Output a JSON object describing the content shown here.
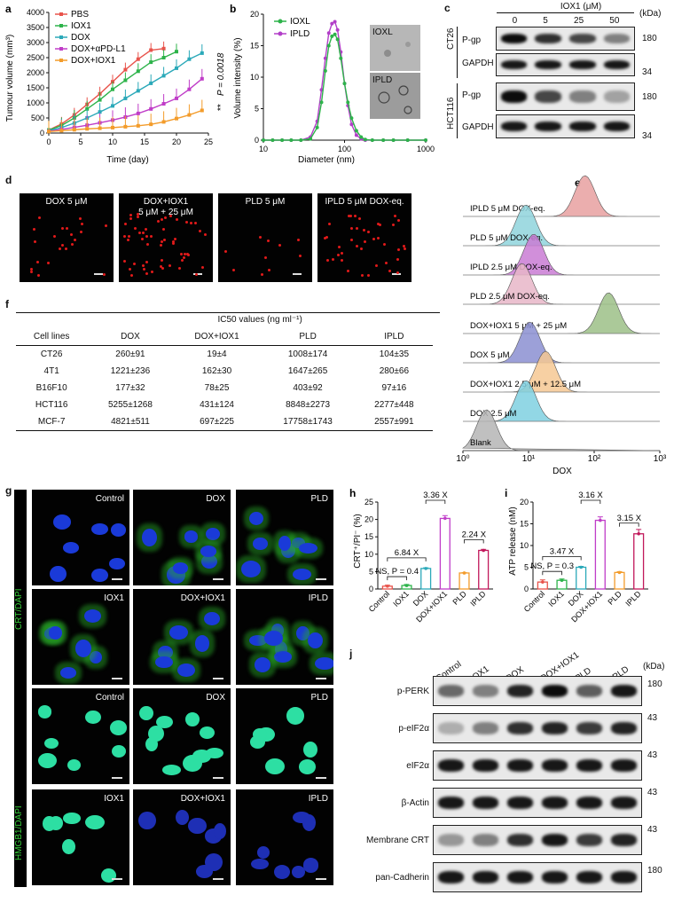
{
  "panels": {
    "a": {
      "label": "a",
      "ylabel": "Tumour volume (mm³)",
      "xlabel": "Time (day)",
      "pvalue_text": "P = 0.0018",
      "stars": "**",
      "legend": [
        "PBS",
        "IOX1",
        "DOX",
        "DOX+αPD-L1",
        "DOX+IOX1"
      ]
    },
    "b": {
      "label": "b",
      "ylabel": "Volume intensity (%)",
      "xlabel": "Diameter (nm)",
      "legend": [
        "IOXL",
        "IPLD"
      ],
      "tem_labels": [
        "IOXL",
        "IPLD"
      ]
    },
    "c": {
      "label": "c",
      "header": "IOX1 (μM)",
      "doses": [
        "0",
        "5",
        "25",
        "50"
      ],
      "unit": "(kDa)",
      "groups": [
        {
          "name": "CT26",
          "rows": [
            {
              "label": "P-gp",
              "kda": "180"
            },
            {
              "label": "GAPDH",
              "kda": "34"
            }
          ]
        },
        {
          "name": "HCT116",
          "rows": [
            {
              "label": "P-gp",
              "kda": "180"
            },
            {
              "label": "GAPDH",
              "kda": "34"
            }
          ]
        }
      ]
    },
    "d": {
      "label": "d",
      "titles": [
        "DOX 5 μM",
        "DOX+IOX1\n5 μM + 25 μM",
        "PLD 5 μM",
        "IPLD 5 μM DOX-eq."
      ]
    },
    "e": {
      "label": "e",
      "xlabel": "DOX",
      "rows": [
        "IPLD 5 μM DOX-eq.",
        "PLD 5 μM DOX-eq.",
        "IPLD 2.5 μM DOX-eq.",
        "PLD 2.5 μM DOX-eq.",
        "DOX+IOX1 5 μM + 25 μM",
        "DOX 5 μM",
        "DOX+IOX1 2.5 μM + 12.5 μM",
        "DOX 2.5 μM",
        "Blank"
      ],
      "xticks": [
        "10⁰",
        "10¹",
        "10²",
        "10³"
      ]
    },
    "f": {
      "label": "f",
      "ic50_title": "IC50 values (ng ml⁻¹)",
      "columns": [
        "Cell lines",
        "DOX",
        "DOX+IOX1",
        "PLD",
        "IPLD"
      ],
      "rows": [
        [
          "CT26",
          "260±91",
          "19±4",
          "1008±174",
          "104±35"
        ],
        [
          "4T1",
          "1221±236",
          "162±30",
          "1647±265",
          "280±66"
        ],
        [
          "B16F10",
          "177±32",
          "78±25",
          "403±92",
          "97±16"
        ],
        [
          "HCT116",
          "5255±1268",
          "431±124",
          "8848±2273",
          "2277±448"
        ],
        [
          "MCF-7",
          "4821±511",
          "697±225",
          "17758±1743",
          "2557±991"
        ]
      ]
    },
    "g": {
      "label": "g",
      "stain_top": "CRT/DAPI",
      "stain_bottom": "HMGB1/DAPI",
      "titles": [
        "Control",
        "DOX",
        "PLD",
        "IOX1",
        "DOX+IOX1",
        "IPLD"
      ]
    },
    "h": {
      "label": "h",
      "ylabel": "CRT⁺/PI⁻ (%)",
      "categories": [
        "Control",
        "IOX1",
        "DOX",
        "DOX+IOX1",
        "PLD",
        "IPLD"
      ],
      "annotations": [
        "3.36 X",
        "2.24 X",
        "6.84 X",
        "NS, P = 0.4"
      ]
    },
    "i": {
      "label": "i",
      "ylabel": "ATP release (nM)",
      "categories": [
        "Control",
        "IOX1",
        "DOX",
        "DOX+IOX1",
        "PLD",
        "IPLD"
      ],
      "annotations": [
        "3.16 X",
        "3.15 X",
        "3.47 X",
        "NS, P = 0.3"
      ]
    },
    "j": {
      "label": "j",
      "lanes": [
        "Control",
        "IOX1",
        "DOX",
        "DOX+IOX1",
        "PLD",
        "IPLD"
      ],
      "unit": "(kDa)",
      "rows": [
        {
          "label": "p-PERK",
          "kda": "180"
        },
        {
          "label": "p-eIF2α",
          "kda": "43"
        },
        {
          "label": "eIF2α",
          "kda": "43"
        },
        {
          "label": "β-Actin",
          "kda": "43"
        },
        {
          "label": "Membrane CRT",
          "kda": "43"
        },
        {
          "label": "pan-Cadherin",
          "kda": "180"
        }
      ]
    }
  },
  "chart_data": [
    {
      "type": "line",
      "panel": "a",
      "x": [
        0,
        2,
        4,
        6,
        8,
        10,
        12,
        14,
        16,
        18,
        20,
        22,
        24
      ],
      "xlim": [
        0,
        25
      ],
      "ylim": [
        0,
        4000
      ],
      "xticks": [
        0,
        5,
        10,
        15,
        20,
        25
      ],
      "yticks": [
        0,
        500,
        1000,
        1500,
        2000,
        2500,
        3000,
        3500,
        4000
      ],
      "series": [
        {
          "name": "PBS",
          "color": "#e8534b",
          "values": [
            100,
            300,
            600,
            950,
            1300,
            1700,
            2100,
            2450,
            2750,
            2800,
            null,
            null,
            null
          ]
        },
        {
          "name": "IOX1",
          "color": "#2db34a",
          "values": [
            100,
            250,
            500,
            800,
            1100,
            1450,
            1750,
            2050,
            2350,
            2500,
            2700,
            null,
            null
          ]
        },
        {
          "name": "DOX",
          "color": "#2ba9b9",
          "values": [
            80,
            180,
            330,
            500,
            700,
            900,
            1150,
            1400,
            1650,
            1900,
            2150,
            2450,
            2650
          ]
        },
        {
          "name": "DOX+αPD-L1",
          "color": "#c03dc8",
          "values": [
            60,
            120,
            190,
            260,
            340,
            430,
            530,
            650,
            800,
            970,
            1150,
            1450,
            1800
          ]
        },
        {
          "name": "DOX+IOX1",
          "color": "#f39c2b",
          "values": [
            50,
            80,
            110,
            140,
            160,
            180,
            210,
            240,
            290,
            370,
            480,
            600,
            750
          ]
        }
      ]
    },
    {
      "type": "line",
      "panel": "b",
      "xscale": "log",
      "xlim": [
        10,
        1000
      ],
      "ylim": [
        0,
        20
      ],
      "yticks": [
        0,
        5,
        10,
        15,
        20
      ],
      "x": [
        10,
        13,
        17,
        22,
        29,
        38,
        46,
        52,
        58,
        64,
        70,
        76,
        82,
        90,
        100,
        110,
        122,
        140,
        160,
        180,
        220,
        300,
        400,
        600,
        1000
      ],
      "series": [
        {
          "name": "IOXL",
          "color": "#2db34a",
          "values": [
            0,
            0,
            0,
            0,
            0,
            0.2,
            2,
            6,
            11,
            15,
            16.5,
            16.8,
            16,
            13,
            9,
            6,
            3.5,
            1.5,
            0.5,
            0.1,
            0,
            0,
            0,
            0,
            0
          ]
        },
        {
          "name": "IPLD",
          "color": "#b23fc8",
          "values": [
            0,
            0,
            0,
            0,
            0,
            0.5,
            3,
            8,
            13,
            17,
            18.5,
            18.8,
            17.5,
            14,
            9,
            5.5,
            2.5,
            0.8,
            0.2,
            0,
            0,
            0,
            0,
            0,
            0
          ]
        }
      ]
    },
    {
      "type": "bar",
      "panel": "h",
      "categories": [
        "Control",
        "IOX1",
        "DOX",
        "DOX+IOX1",
        "PLD",
        "IPLD"
      ],
      "values": [
        0.8,
        1.0,
        5.9,
        20.3,
        4.6,
        11.1
      ],
      "errors": [
        0.3,
        0.3,
        0.2,
        0.8,
        0.1,
        0.3
      ],
      "colors": [
        "#e8534b",
        "#2db34a",
        "#2ba9b9",
        "#c03dc8",
        "#f39c2b",
        "#c2185b"
      ],
      "ylim": [
        0,
        25
      ],
      "yticks": [
        0,
        5,
        10,
        15,
        20,
        25
      ]
    },
    {
      "type": "bar",
      "panel": "i",
      "categories": [
        "Control",
        "IOX1",
        "DOX",
        "DOX+IOX1",
        "PLD",
        "IPLD"
      ],
      "values": [
        1.6,
        2.0,
        5.0,
        15.8,
        3.8,
        12.7
      ],
      "errors": [
        0.5,
        0.3,
        0.2,
        0.8,
        0.2,
        1.0
      ],
      "colors": [
        "#e8534b",
        "#2db34a",
        "#2ba9b9",
        "#c03dc8",
        "#f39c2b",
        "#c2185b"
      ],
      "ylim": [
        0,
        20
      ],
      "yticks": [
        0,
        5,
        10,
        15,
        20
      ]
    }
  ]
}
